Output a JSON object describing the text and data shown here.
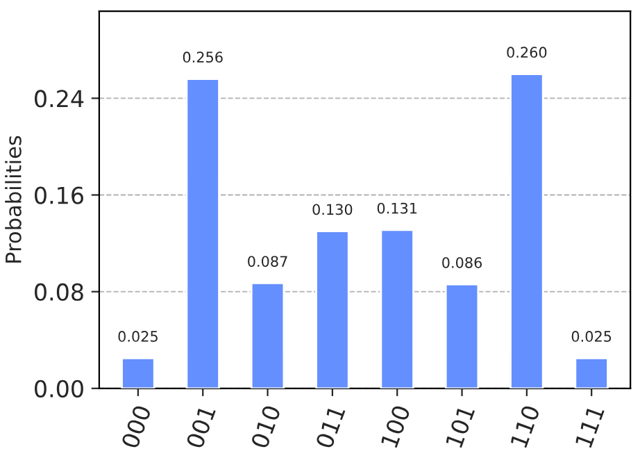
{
  "chart_data": {
    "type": "bar",
    "ylabel": "Probabilities",
    "categories": [
      "000",
      "001",
      "010",
      "011",
      "100",
      "101",
      "110",
      "111"
    ],
    "values": [
      0.025,
      0.256,
      0.087,
      0.13,
      0.131,
      0.086,
      0.26,
      0.025
    ],
    "value_labels": [
      "0.025",
      "0.256",
      "0.087",
      "0.130",
      "0.131",
      "0.086",
      "0.260",
      "0.025"
    ],
    "color": "#648fff",
    "ylim": [
      0,
      0.312
    ],
    "yticks": [
      {
        "value": 0,
        "label": "0.00"
      },
      {
        "value": 0.08,
        "label": "0.08"
      },
      {
        "value": 0.16,
        "label": "0.16"
      },
      {
        "value": 0.24,
        "label": "0.24"
      }
    ],
    "grid": "y",
    "line_style": "dashed"
  }
}
